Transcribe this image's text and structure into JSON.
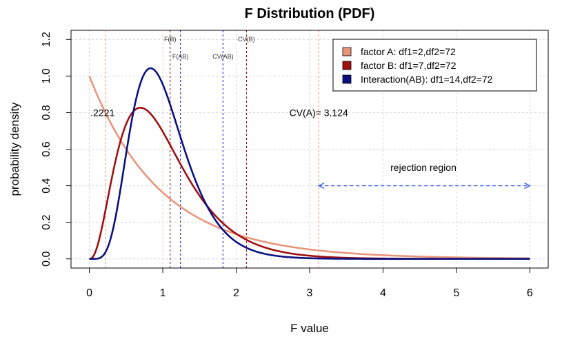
{
  "chart_data": {
    "type": "line",
    "title": "F Distribution (PDF)",
    "xlabel": "F value",
    "ylabel": "probability density",
    "xlim": [
      -0.25,
      6.25
    ],
    "ylim": [
      -0.05,
      1.25
    ],
    "x_ticks": [
      "0",
      "1",
      "2",
      "3",
      "4",
      "5",
      "6"
    ],
    "y_ticks": [
      "0.0",
      "0.2",
      "0.4",
      "0.6",
      "0.8",
      "1.0",
      "1.2"
    ],
    "grid": true,
    "legend_position": "top-right",
    "series": [
      {
        "name": "factor A: df1=2,df2=72",
        "df1": 2,
        "df2": 72,
        "color": "#E8967A"
      },
      {
        "name": "factor B: df1=7,df2=72",
        "df1": 7,
        "df2": 72,
        "color": "#A01010"
      },
      {
        "name": "Interaction(AB): df1=14,df2=72",
        "df1": 14,
        "df2": 72,
        "color": "#0A1080"
      }
    ],
    "vlines": [
      {
        "x": 0.2221,
        "color": "#E8967A",
        "label": ""
      },
      {
        "x": 3.124,
        "color": "#E8967A",
        "label": ""
      },
      {
        "x": 1.1,
        "color": "#A01010",
        "label": "F(B)"
      },
      {
        "x": 2.14,
        "color": "#A01010",
        "label": "CV(B)"
      },
      {
        "x": 1.24,
        "color": "#2020C0",
        "label": "F(AB)"
      },
      {
        "x": 1.82,
        "color": "#2020C0",
        "label": "CV(AB)"
      }
    ],
    "annotations": {
      "fa_value": ".2221",
      "cv_a": "CV(A)= 3.124",
      "rejection": "rejection region"
    },
    "rejection_arrow": {
      "from": 3.124,
      "to": 6,
      "y": 0.4,
      "color": "#3A5BEF"
    }
  }
}
